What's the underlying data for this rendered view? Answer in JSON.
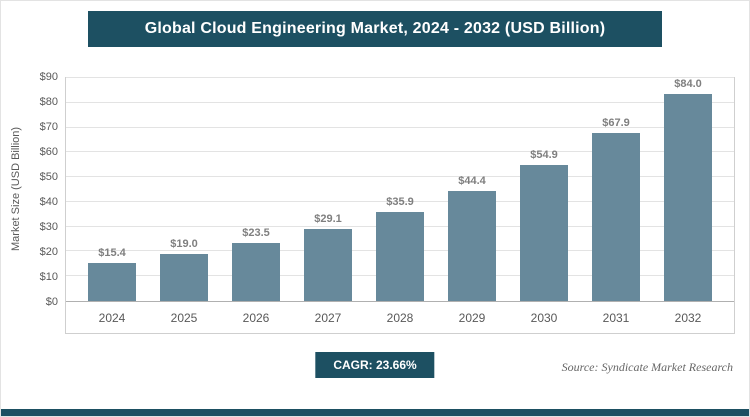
{
  "header": {
    "title": "Global Cloud Engineering Market, 2024 - 2032 (USD Billion)"
  },
  "chart_data": {
    "type": "bar",
    "categories": [
      "2024",
      "2025",
      "2026",
      "2027",
      "2028",
      "2029",
      "2030",
      "2031",
      "2032"
    ],
    "values": [
      15.4,
      19.0,
      23.5,
      29.1,
      35.9,
      44.4,
      54.9,
      67.9,
      84.0
    ],
    "value_labels": [
      "$15.4",
      "$19.0",
      "$23.5",
      "$29.1",
      "$35.9",
      "$44.4",
      "$54.9",
      "$67.9",
      "$84.0"
    ],
    "title": "Global Cloud Engineering Market, 2024 - 2032 (USD Billion)",
    "xlabel": "",
    "ylabel": "Market Size (USD Billion)",
    "ylim": [
      0,
      90
    ],
    "ytick_step": 10,
    "ytick_labels": [
      "$0",
      "$10",
      "$20",
      "$30",
      "$40",
      "$50",
      "$60",
      "$70",
      "$80",
      "$90"
    ],
    "grid": true,
    "legend": "none",
    "bar_color": "#67899b"
  },
  "footer": {
    "cagr_label": "CAGR: 23.66%",
    "source": "Source: Syndicate Market Research"
  },
  "colors": {
    "header_bg": "#1d5062",
    "bar": "#67899b",
    "badge_bg": "#1d5062",
    "bottom_strip": "#1d5062"
  }
}
